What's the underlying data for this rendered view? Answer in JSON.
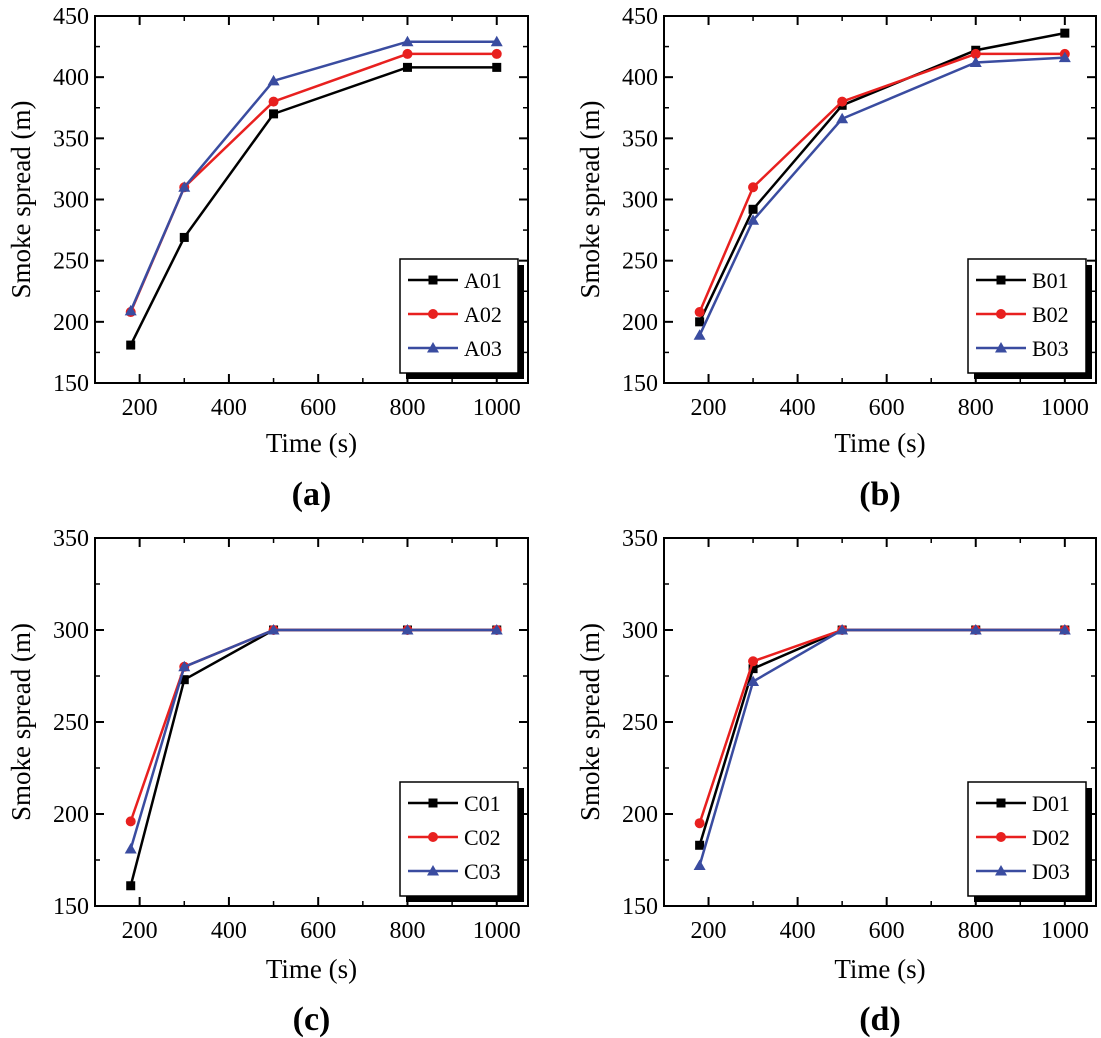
{
  "colors": {
    "black": "#000000",
    "red": "#e8201f",
    "blue": "#3a4ca0"
  },
  "chart_data": [
    {
      "type": "line",
      "caption": "(a)",
      "xlabel": "Time (s)",
      "ylabel": "Smoke spread (m)",
      "xlim": [
        100,
        1070
      ],
      "ylim": [
        150,
        450
      ],
      "xticks": [
        200,
        400,
        600,
        800,
        1000
      ],
      "yticks": [
        150,
        200,
        250,
        300,
        350,
        400,
        450
      ],
      "x": [
        180,
        300,
        500,
        800,
        1000
      ],
      "legend_position": "bottom-right",
      "series": [
        {
          "name": "A01",
          "marker": "square",
          "color": "#000000",
          "values": [
            181,
            269,
            370,
            408,
            408
          ]
        },
        {
          "name": "A02",
          "marker": "circle",
          "color": "#e8201f",
          "values": [
            208,
            310,
            380,
            419,
            419
          ]
        },
        {
          "name": "A03",
          "marker": "triangle",
          "color": "#3a4ca0",
          "values": [
            209,
            310,
            397,
            429,
            429
          ]
        }
      ]
    },
    {
      "type": "line",
      "caption": "(b)",
      "xlabel": "Time (s)",
      "ylabel": "Smoke spread (m)",
      "xlim": [
        100,
        1070
      ],
      "ylim": [
        150,
        450
      ],
      "xticks": [
        200,
        400,
        600,
        800,
        1000
      ],
      "yticks": [
        150,
        200,
        250,
        300,
        350,
        400,
        450
      ],
      "x": [
        180,
        300,
        500,
        800,
        1000
      ],
      "legend_position": "bottom-right",
      "series": [
        {
          "name": "B01",
          "marker": "square",
          "color": "#000000",
          "values": [
            200,
            292,
            377,
            422,
            436
          ]
        },
        {
          "name": "B02",
          "marker": "circle",
          "color": "#e8201f",
          "values": [
            208,
            310,
            380,
            419,
            419
          ]
        },
        {
          "name": "B03",
          "marker": "triangle",
          "color": "#3a4ca0",
          "values": [
            189,
            283,
            366,
            412,
            416
          ]
        }
      ]
    },
    {
      "type": "line",
      "caption": "(c)",
      "xlabel": "Time (s)",
      "ylabel": "Smoke spread (m)",
      "xlim": [
        100,
        1070
      ],
      "ylim": [
        150,
        350
      ],
      "xticks": [
        200,
        400,
        600,
        800,
        1000
      ],
      "yticks": [
        150,
        200,
        250,
        300,
        350
      ],
      "x": [
        180,
        300,
        500,
        800,
        1000
      ],
      "legend_position": "bottom-right",
      "series": [
        {
          "name": "C01",
          "marker": "square",
          "color": "#000000",
          "values": [
            161,
            273,
            300,
            300,
            300
          ]
        },
        {
          "name": "C02",
          "marker": "circle",
          "color": "#e8201f",
          "values": [
            196,
            280,
            300,
            300,
            300
          ]
        },
        {
          "name": "C03",
          "marker": "triangle",
          "color": "#3a4ca0",
          "values": [
            181,
            280,
            300,
            300,
            300
          ]
        }
      ]
    },
    {
      "type": "line",
      "caption": "(d)",
      "xlabel": "Time (s)",
      "ylabel": "Smoke spread (m)",
      "xlim": [
        100,
        1070
      ],
      "ylim": [
        150,
        350
      ],
      "xticks": [
        200,
        400,
        600,
        800,
        1000
      ],
      "yticks": [
        150,
        200,
        250,
        300,
        350
      ],
      "x": [
        180,
        300,
        500,
        800,
        1000
      ],
      "legend_position": "bottom-right",
      "series": [
        {
          "name": "D01",
          "marker": "square",
          "color": "#000000",
          "values": [
            183,
            279,
            300,
            300,
            300
          ]
        },
        {
          "name": "D02",
          "marker": "circle",
          "color": "#e8201f",
          "values": [
            195,
            283,
            300,
            300,
            300
          ]
        },
        {
          "name": "D03",
          "marker": "triangle",
          "color": "#3a4ca0",
          "values": [
            172,
            272,
            300,
            300,
            300
          ]
        }
      ]
    }
  ]
}
